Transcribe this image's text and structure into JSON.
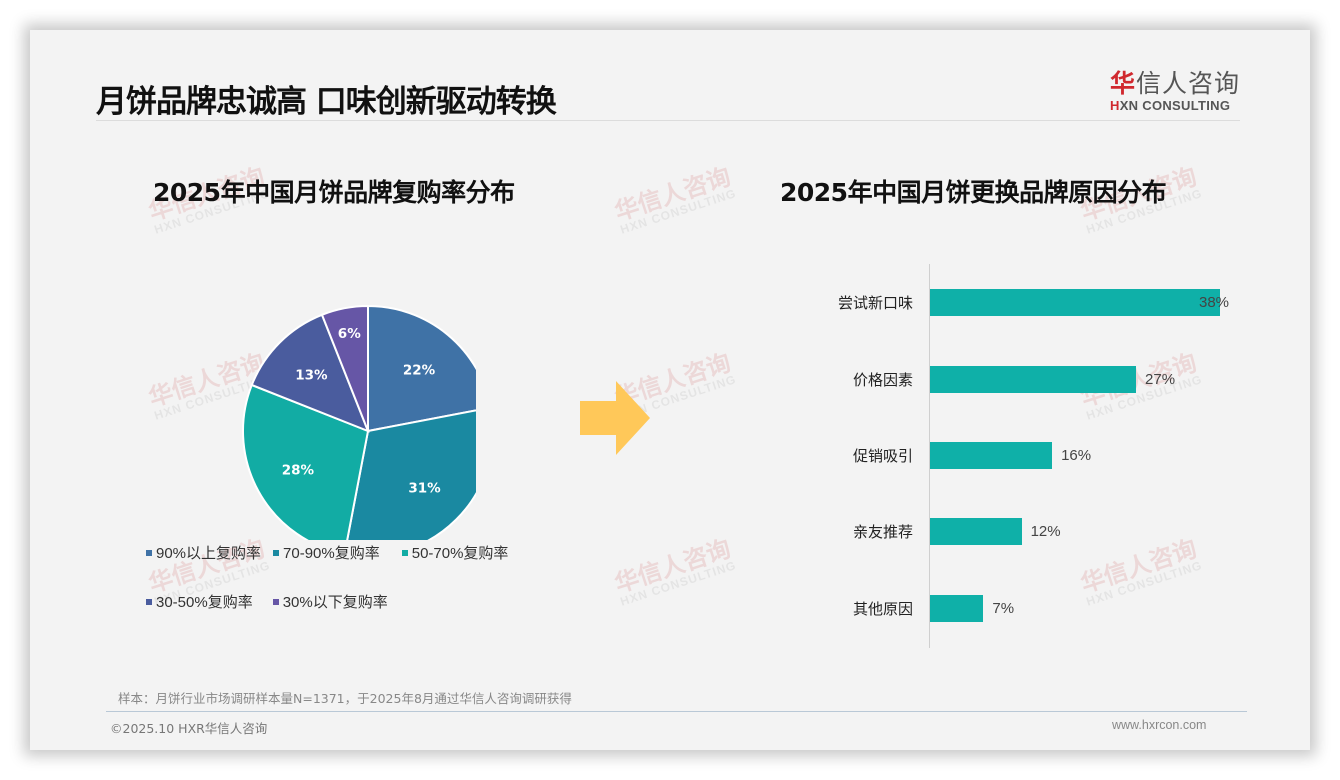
{
  "slide": {
    "title": "月饼品牌忠诚高 口味创新驱动转换",
    "logo": {
      "cn_red": "华",
      "cn_rest": "信人咨询",
      "en_red": "H",
      "en_rest": "XN CONSULTING"
    },
    "watermark": {
      "cn": "华信人咨询",
      "en": "HXN CONSULTING"
    },
    "note": "样本：月饼行业市场调研样本量N=1371，于2025年8月通过华信人咨询调研获得",
    "footer_left": "©2025.10 HXR华信人咨询",
    "footer_right": "www.hxrcon.com",
    "arrow_color": "#ffc859"
  },
  "chart_data": [
    {
      "type": "pie",
      "title": "2025年中国月饼品牌复购率分布",
      "categories": [
        "90%以上复购率",
        "70-90%复购率",
        "50-70%复购率",
        "30-50%复购率",
        "30%以下复购率"
      ],
      "values": [
        22,
        31,
        28,
        13,
        6
      ],
      "labels": [
        "22%",
        "31%",
        "28%",
        "13%",
        "6%"
      ],
      "colors": [
        "#3f72a6",
        "#1a89a1",
        "#12aca4",
        "#4a5c9e",
        "#6656a6"
      ],
      "start_angle": "12 o'clock, clockwise",
      "legend_position": "bottom"
    },
    {
      "type": "bar",
      "orientation": "horizontal",
      "title": "2025年中国月饼更换品牌原因分布",
      "categories": [
        "尝试新口味",
        "价格因素",
        "促销吸引",
        "亲友推荐",
        "其他原因"
      ],
      "values": [
        38,
        27,
        16,
        12,
        7
      ],
      "labels": [
        "38%",
        "27%",
        "16%",
        "12%",
        "7%"
      ],
      "color": "#0fb0a8",
      "xlim": [
        0,
        38
      ],
      "grid": false,
      "legend": false
    }
  ]
}
